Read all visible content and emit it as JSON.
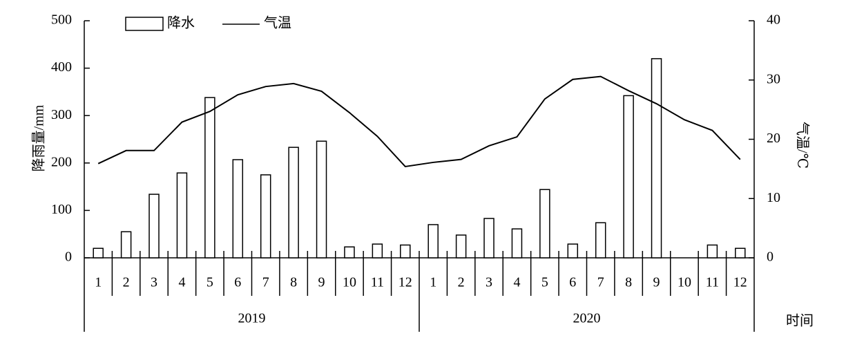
{
  "chart_data": {
    "type": "bar-line",
    "y_label": "降雨量/mm",
    "y2_label": "气温/℃",
    "x_label": "时间",
    "categories": [
      "1",
      "2",
      "3",
      "4",
      "5",
      "6",
      "7",
      "8",
      "9",
      "10",
      "11",
      "12",
      "1",
      "2",
      "3",
      "4",
      "5",
      "6",
      "7",
      "8",
      "9",
      "10",
      "11",
      "12"
    ],
    "x_groups": [
      "2019",
      "2020"
    ],
    "series": [
      {
        "name": "降水",
        "type": "bar",
        "axis": "y",
        "color": "#000000",
        "values": [
          20,
          55,
          134,
          179,
          338,
          207,
          175,
          233,
          246,
          23,
          29,
          27,
          70,
          48,
          83,
          61,
          144,
          29,
          74,
          342,
          420,
          0,
          27,
          20
        ]
      },
      {
        "name": "气温",
        "type": "line",
        "axis": "y2",
        "color": "#000000",
        "values": [
          15.9,
          18.1,
          18.1,
          22.9,
          24.7,
          27.5,
          28.9,
          29.4,
          28.1,
          24.5,
          20.5,
          15.4,
          16.1,
          16.6,
          18.9,
          20.4,
          26.8,
          30.1,
          30.6,
          28.2,
          26.0,
          23.3,
          21.5,
          16.6
        ]
      }
    ],
    "ylim": [
      0,
      500
    ],
    "yticks": [
      0,
      100,
      200,
      300,
      400,
      500
    ],
    "y2lim": [
      0,
      40
    ],
    "y2ticks": [
      0,
      10,
      20,
      30,
      40
    ]
  }
}
